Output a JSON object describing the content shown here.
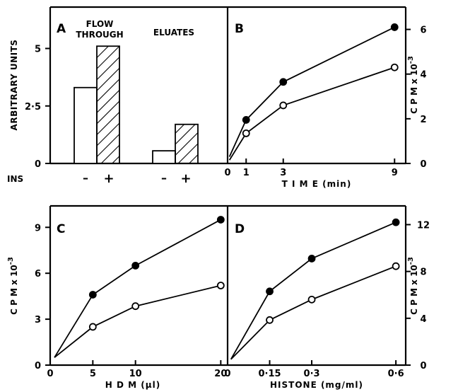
{
  "panels": {
    "A": {
      "label": "A",
      "ylabel": "ARBITRARY UNITS",
      "ins_label": "INS",
      "group_labels": [
        "FLOW THROUGH",
        "ELUATES"
      ],
      "minus": "–",
      "plus": "+"
    },
    "B": {
      "label": "B",
      "ylabel": "C P M x 10",
      "ylabel_exp": "-3",
      "xlabel": "T I M E (min)"
    },
    "C": {
      "label": "C",
      "ylabel": "C P M x 10",
      "ylabel_exp": "-3",
      "xlabel": "H D M (µl)"
    },
    "D": {
      "label": "D",
      "ylabel": "C P M x 10",
      "ylabel_exp": "-3",
      "xlabel": "HISTONE (mg/ml)"
    }
  },
  "chart_data": [
    {
      "panel": "A",
      "type": "bar",
      "categories": [
        "FLOW THROUGH",
        "ELUATES"
      ],
      "series": [
        {
          "ins": "–",
          "pattern": "open",
          "values": [
            3.3,
            0.55
          ]
        },
        {
          "ins": "+",
          "pattern": "hatched",
          "values": [
            5.1,
            1.7
          ]
        }
      ],
      "ylabel": "ARBITRARY UNITS",
      "ylim": [
        0,
        6.8
      ],
      "yticks": [
        0,
        2.5,
        5
      ],
      "ytick_labels": [
        "0",
        "2·5",
        "5"
      ]
    },
    {
      "panel": "B",
      "type": "line",
      "xlabel": "T I M E (min)",
      "ylabel": "C P M x 10-3",
      "xlim": [
        0,
        9.6
      ],
      "ylim": [
        0,
        7
      ],
      "xticks": [
        0,
        1,
        3,
        9
      ],
      "xtick_labels": [
        "0",
        "1",
        "3",
        "9"
      ],
      "yticks": [
        0,
        2,
        4,
        6
      ],
      "ytick_labels": [
        "0",
        "2",
        "4",
        "6"
      ],
      "series": [
        {
          "marker": "filled",
          "x": [
            1,
            3,
            9
          ],
          "y": [
            1.95,
            3.65,
            6.1
          ],
          "origin": [
            0.1,
            0.3
          ]
        },
        {
          "marker": "open",
          "x": [
            1,
            3,
            9
          ],
          "y": [
            1.35,
            2.6,
            4.3
          ],
          "origin": [
            0.1,
            0.15
          ]
        }
      ]
    },
    {
      "panel": "C",
      "type": "line",
      "xlabel": "H D M (µl)",
      "ylabel": "C P M x 10-3",
      "xlim": [
        0,
        20.8
      ],
      "ylim": [
        0,
        10.4
      ],
      "xticks": [
        0,
        5,
        10,
        20
      ],
      "xtick_labels": [
        "0",
        "5",
        "10",
        "20"
      ],
      "yticks": [
        0,
        3,
        6,
        9
      ],
      "ytick_labels": [
        "0",
        "3",
        "6",
        "9"
      ],
      "series": [
        {
          "marker": "filled",
          "x": [
            5,
            10,
            20
          ],
          "y": [
            4.6,
            6.5,
            9.5
          ],
          "origin": [
            0.5,
            0.5
          ]
        },
        {
          "marker": "open",
          "x": [
            5,
            10,
            20
          ],
          "y": [
            2.5,
            3.85,
            5.2
          ],
          "origin": [
            0.5,
            0.5
          ]
        }
      ]
    },
    {
      "panel": "D",
      "type": "line",
      "xlabel": "HISTONE (mg/ml)",
      "ylabel": "C P M x 10-3",
      "xlim": [
        0,
        0.635
      ],
      "ylim": [
        0,
        13.6
      ],
      "xticks": [
        0,
        0.15,
        0.3,
        0.6
      ],
      "xtick_labels": [
        "0",
        "0·15",
        "0·3",
        "0·6"
      ],
      "yticks": [
        0,
        4,
        8,
        12
      ],
      "ytick_labels": [
        "0",
        "4",
        "8",
        "12"
      ],
      "series": [
        {
          "marker": "filled",
          "x": [
            0.15,
            0.3,
            0.6
          ],
          "y": [
            6.3,
            9.1,
            12.2
          ],
          "origin": [
            0.012,
            0.5
          ]
        },
        {
          "marker": "open",
          "x": [
            0.15,
            0.3,
            0.6
          ],
          "y": [
            3.85,
            5.6,
            8.45
          ],
          "origin": [
            0.012,
            0.5
          ]
        }
      ]
    }
  ]
}
